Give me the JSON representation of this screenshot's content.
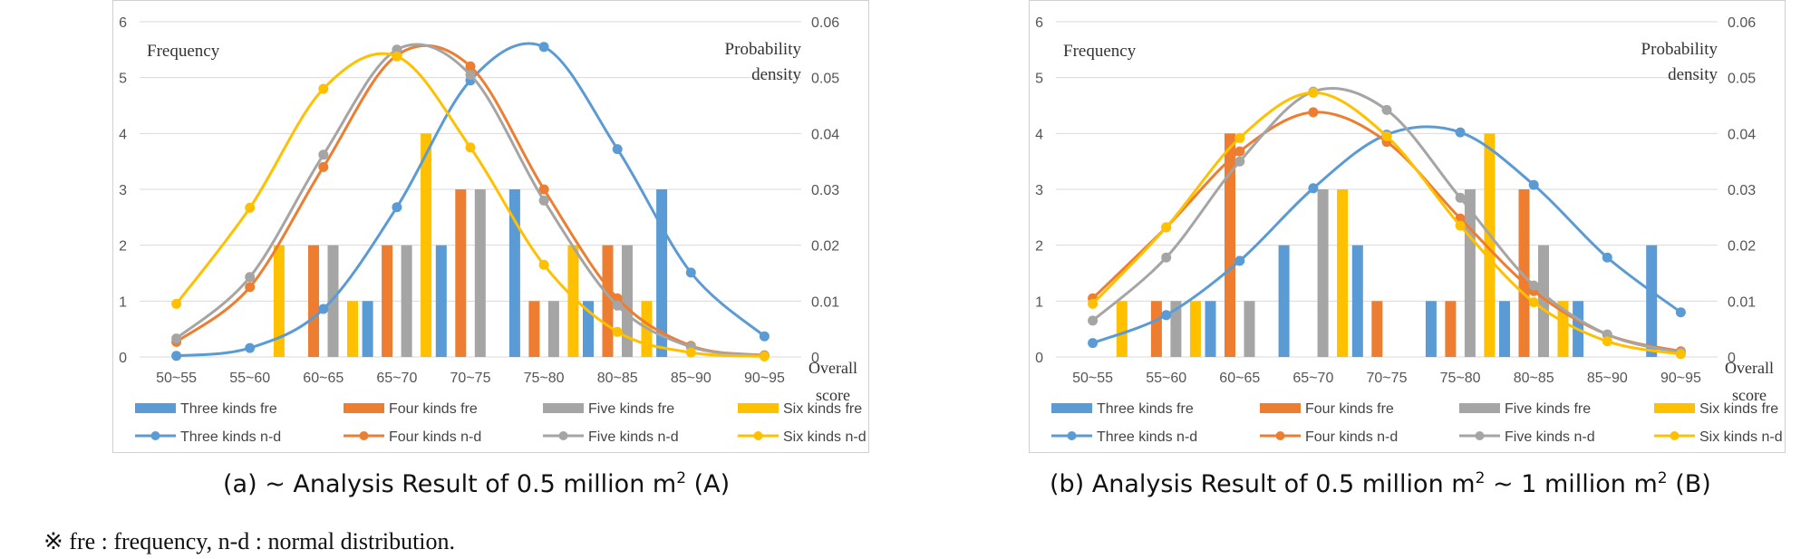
{
  "chart_data": [
    {
      "type": "bar",
      "caption": {
        "prefix": "(a) ~ Analysis Result of 0.5 million m",
        "sup1": "2",
        "after": " (A)",
        "sup2": "",
        "suffix": ""
      },
      "categories": [
        "50~55",
        "55~60",
        "60~65",
        "65~70",
        "70~75",
        "75~80",
        "80~85",
        "85~90",
        "90~95"
      ],
      "ylabel_left": "Frequency",
      "ylabel_right": [
        "Probability",
        "density"
      ],
      "xlabel": [
        "Overall",
        "score"
      ],
      "ylim_left": [
        0,
        6
      ],
      "ylim_right": [
        0,
        0.06
      ],
      "yticks_left": [
        "0",
        "1",
        "2",
        "3",
        "4",
        "5",
        "6"
      ],
      "yticks_right": [
        "0",
        "0.01",
        "0.02",
        "0.03",
        "0.04",
        "0.05",
        "0.06"
      ],
      "grid": true,
      "legend_position": "bottom",
      "series": [
        {
          "name": "Three kinds fre",
          "kind": "bar",
          "axis": "left",
          "color": "#5B9BD5",
          "values": [
            0,
            0,
            0,
            1,
            2,
            3,
            1,
            3,
            0
          ]
        },
        {
          "name": "Four kinds fre",
          "kind": "bar",
          "axis": "left",
          "color": "#ED7D31",
          "values": [
            0,
            0,
            2,
            2,
            3,
            1,
            2,
            0,
            0
          ]
        },
        {
          "name": "Five kinds fre",
          "kind": "bar",
          "axis": "left",
          "color": "#A5A5A5",
          "values": [
            0,
            0,
            2,
            2,
            3,
            1,
            2,
            0,
            0
          ]
        },
        {
          "name": "Six kinds fre",
          "kind": "bar",
          "axis": "left",
          "color": "#FFC000",
          "values": [
            0,
            2,
            1,
            4,
            0,
            2,
            1,
            0,
            0
          ]
        },
        {
          "name": "Three kinds n-d",
          "kind": "line",
          "axis": "right",
          "color": "#5B9BD5",
          "values": [
            0.0002,
            0.0016,
            0.0086,
            0.0268,
            0.0495,
            0.0555,
            0.0372,
            0.0151,
            0.0037
          ]
        },
        {
          "name": "Four kinds n-d",
          "kind": "line",
          "axis": "right",
          "color": "#ED7D31",
          "values": [
            0.0027,
            0.0125,
            0.034,
            0.054,
            0.052,
            0.03,
            0.0105,
            0.002,
            0.0003
          ]
        },
        {
          "name": "Five kinds n-d",
          "kind": "line",
          "axis": "right",
          "color": "#A5A5A5",
          "values": [
            0.0033,
            0.0143,
            0.0362,
            0.055,
            0.0505,
            0.028,
            0.0092,
            0.0018,
            0.0002
          ]
        },
        {
          "name": "Six kinds n-d",
          "kind": "line",
          "axis": "right",
          "color": "#FFC000",
          "values": [
            0.0095,
            0.0267,
            0.048,
            0.0538,
            0.0375,
            0.0165,
            0.0045,
            0.0008,
            0.0001
          ]
        }
      ]
    },
    {
      "type": "bar",
      "caption": {
        "prefix": "(b) Analysis Result of 0.5 million m",
        "sup1": "2",
        "after": " ~ 1 million m",
        "sup2": "2",
        "suffix": " (B)"
      },
      "categories": [
        "50~55",
        "55~60",
        "60~65",
        "65~70",
        "70~75",
        "75~80",
        "80~85",
        "85~90",
        "90~95"
      ],
      "ylabel_left": "Frequency",
      "ylabel_right": [
        "Probability",
        "density"
      ],
      "xlabel": [
        "Overall",
        "score"
      ],
      "ylim_left": [
        0,
        6
      ],
      "ylim_right": [
        0,
        0.06
      ],
      "yticks_left": [
        "0",
        "1",
        "2",
        "3",
        "4",
        "5",
        "6"
      ],
      "yticks_right": [
        "0",
        "0.01",
        "0.02",
        "0.03",
        "0.04",
        "0.05",
        "0.06"
      ],
      "grid": true,
      "legend_position": "bottom",
      "series": [
        {
          "name": "Three kinds fre",
          "kind": "bar",
          "axis": "left",
          "color": "#5B9BD5",
          "values": [
            0,
            0,
            1,
            2,
            2,
            1,
            1,
            1,
            2
          ]
        },
        {
          "name": "Four kinds fre",
          "kind": "bar",
          "axis": "left",
          "color": "#ED7D31",
          "values": [
            0,
            1,
            4,
            0,
            1,
            1,
            3,
            0,
            0
          ]
        },
        {
          "name": "Five kinds fre",
          "kind": "bar",
          "axis": "left",
          "color": "#A5A5A5",
          "values": [
            0,
            1,
            1,
            3,
            0,
            3,
            2,
            0,
            0
          ]
        },
        {
          "name": "Six kinds fre",
          "kind": "bar",
          "axis": "left",
          "color": "#FFC000",
          "values": [
            1,
            1,
            0,
            3,
            0,
            4,
            1,
            0,
            0
          ]
        },
        {
          "name": "Three kinds n-d",
          "kind": "line",
          "axis": "right",
          "color": "#5B9BD5",
          "values": [
            0.0025,
            0.0075,
            0.0172,
            0.0302,
            0.0398,
            0.0402,
            0.0308,
            0.0178,
            0.008
          ]
        },
        {
          "name": "Four kinds n-d",
          "kind": "line",
          "axis": "right",
          "color": "#ED7D31",
          "values": [
            0.0105,
            0.0232,
            0.0368,
            0.0438,
            0.0385,
            0.0248,
            0.0118,
            0.004,
            0.001
          ]
        },
        {
          "name": "Five kinds n-d",
          "kind": "line",
          "axis": "right",
          "color": "#A5A5A5",
          "values": [
            0.0065,
            0.0178,
            0.035,
            0.0475,
            0.0442,
            0.0285,
            0.0128,
            0.004,
            0.0008
          ]
        },
        {
          "name": "Six kinds n-d",
          "kind": "line",
          "axis": "right",
          "color": "#FFC000",
          "values": [
            0.0095,
            0.0232,
            0.0392,
            0.0473,
            0.0395,
            0.0235,
            0.0098,
            0.0028,
            0.0005
          ]
        }
      ]
    }
  ],
  "footnote": "※  fre : frequency, n-d : normal distribution."
}
